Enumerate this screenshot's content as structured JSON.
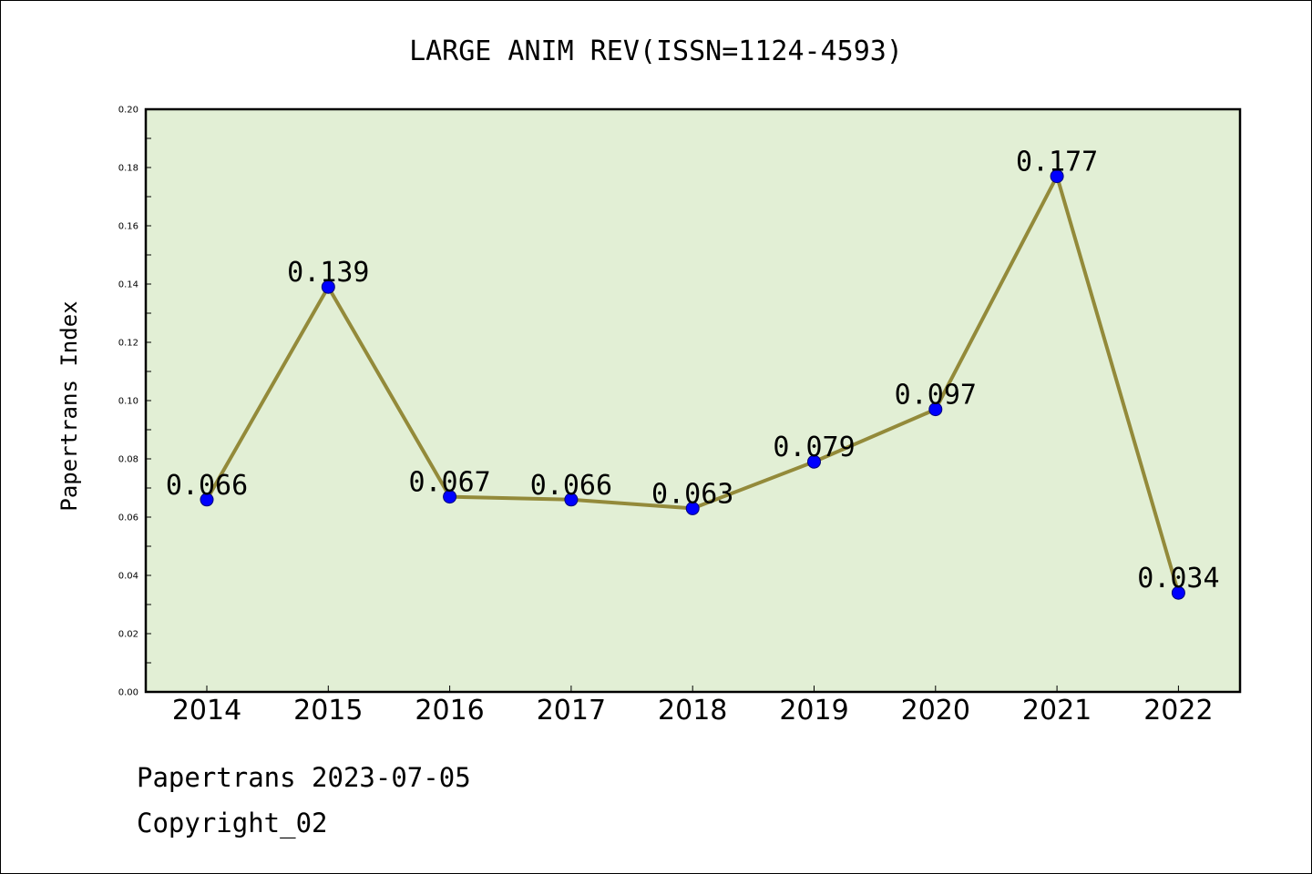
{
  "chart_data": {
    "type": "line",
    "title": "LARGE ANIM REV(ISSN=1124-4593)",
    "ylabel": "Papertrans Index",
    "xlabel": "",
    "categories": [
      "2014",
      "2015",
      "2016",
      "2017",
      "2018",
      "2019",
      "2020",
      "2021",
      "2022"
    ],
    "series": [
      {
        "values": [
          0.066,
          0.139,
          0.067,
          0.066,
          0.063,
          0.079,
          0.097,
          0.177,
          0.034
        ],
        "labels": [
          "0.066",
          "0.139",
          "0.067",
          "0.066",
          "0.063",
          "0.079",
          "0.097",
          "0.177",
          "0.034"
        ]
      }
    ],
    "ylim": [
      0,
      0.2
    ],
    "yticks": [
      "0.00",
      "0.02",
      "0.04",
      "0.06",
      "0.08",
      "0.10",
      "0.12",
      "0.14",
      "0.16",
      "0.18",
      "0.20"
    ],
    "grid": false,
    "colors": {
      "plot_background": "#e2efd5",
      "line": "#938a3a",
      "marker": "#0000ff"
    }
  },
  "footer": {
    "line1": "Papertrans 2023-07-05",
    "line2": "Copyright_02"
  }
}
